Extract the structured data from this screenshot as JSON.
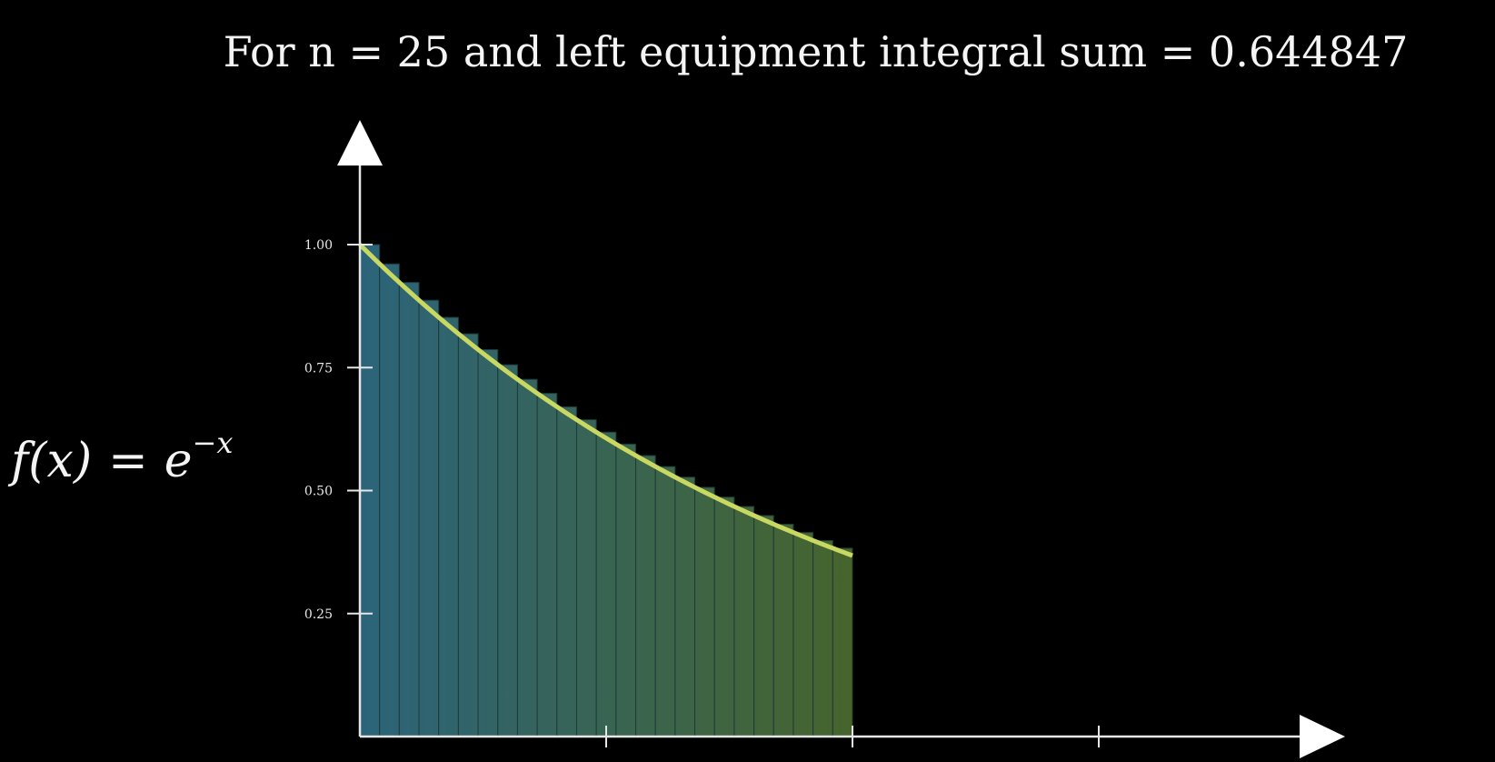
{
  "title": "For n = 25 and left equipment integral sum = 0.644847",
  "formula": {
    "lhs": "f(x)",
    "eq": "=",
    "base": "e",
    "exponent": "−x"
  },
  "chart_data": {
    "type": "bar",
    "function": "exp(-x)",
    "n": 25,
    "x_range": [
      0,
      1
    ],
    "xlim": [
      0,
      2
    ],
    "ylim": [
      0,
      1.2
    ],
    "x_ticks": [
      0.5,
      1,
      1.5
    ],
    "y_ticks": [
      "0.25",
      "0.50",
      "0.75",
      "1.00"
    ],
    "y_tick_values": [
      0.25,
      0.5,
      0.75,
      1.0
    ],
    "sum": 0.644847,
    "colors": {
      "start": "#2e6a82",
      "end": "#4a6a2e",
      "curve": "#c8d860",
      "axis": "#e6e6e6"
    }
  }
}
